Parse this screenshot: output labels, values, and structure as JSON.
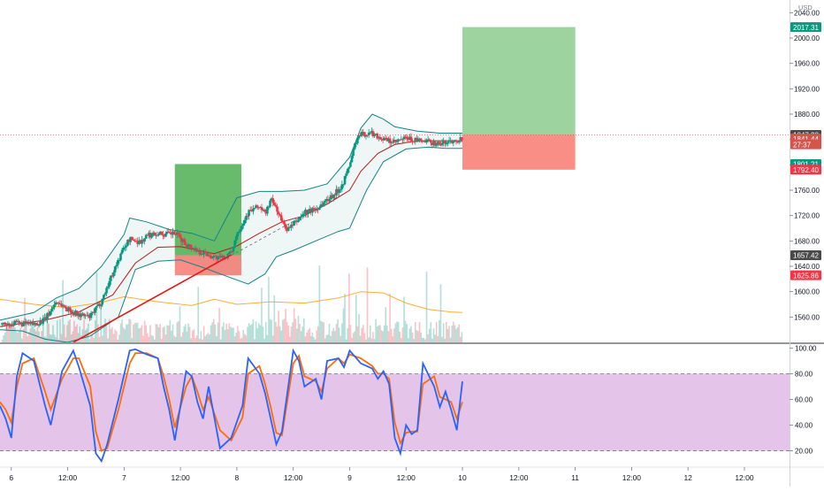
{
  "chart_data": {
    "type": "candlestick",
    "currency": "USD",
    "price_axis": {
      "range": [
        1520,
        2060
      ],
      "ticks": [
        1560,
        1600,
        1640,
        1680,
        1720,
        1760,
        1800,
        1840,
        1880,
        1920,
        1960,
        2000,
        2040
      ],
      "tick_labels": [
        "1560.00",
        "1600.00",
        "1640.00",
        "1680.00",
        "1720.00",
        "1760.00",
        "1800.00",
        "1840.00",
        "1880.00",
        "1920.00",
        "1960.00",
        "2000.00",
        "2040.00"
      ]
    },
    "time_axis": {
      "range": [
        5.9,
        12.9
      ],
      "ticks": [
        6,
        6.5,
        7,
        7.5,
        8,
        8.5,
        9,
        9.5,
        10,
        10.5,
        11,
        11.5,
        12,
        12.5
      ],
      "tick_labels": [
        "6",
        "12:00",
        "7",
        "12:00",
        "8",
        "12:00",
        "9",
        "12:00",
        "10",
        "12:00",
        "11",
        "12:00",
        "12",
        "12:00"
      ]
    },
    "close_path": [
      [
        5.9,
        1548
      ],
      [
        6.05,
        1550
      ],
      [
        6.2,
        1548
      ],
      [
        6.3,
        1556
      ],
      [
        6.4,
        1585
      ],
      [
        6.5,
        1572
      ],
      [
        6.6,
        1563
      ],
      [
        6.7,
        1560
      ],
      [
        6.8,
        1585
      ],
      [
        6.9,
        1630
      ],
      [
        7.0,
        1670
      ],
      [
        7.05,
        1683
      ],
      [
        7.15,
        1678
      ],
      [
        7.2,
        1688
      ],
      [
        7.3,
        1693
      ],
      [
        7.35,
        1690
      ],
      [
        7.45,
        1692
      ],
      [
        7.55,
        1675
      ],
      [
        7.65,
        1665
      ],
      [
        7.75,
        1658
      ],
      [
        7.85,
        1652
      ],
      [
        7.95,
        1660
      ],
      [
        8.0,
        1692
      ],
      [
        8.05,
        1708
      ],
      [
        8.1,
        1725
      ],
      [
        8.2,
        1735
      ],
      [
        8.25,
        1722
      ],
      [
        8.3,
        1745
      ],
      [
        8.35,
        1732
      ],
      [
        8.4,
        1710
      ],
      [
        8.45,
        1698
      ],
      [
        8.5,
        1705
      ],
      [
        8.6,
        1725
      ],
      [
        8.7,
        1730
      ],
      [
        8.8,
        1745
      ],
      [
        8.9,
        1760
      ],
      [
        8.95,
        1775
      ],
      [
        9.0,
        1800
      ],
      [
        9.05,
        1835
      ],
      [
        9.1,
        1848
      ],
      [
        9.2,
        1850
      ],
      [
        9.3,
        1840
      ],
      [
        9.4,
        1835
      ],
      [
        9.5,
        1842
      ],
      [
        9.6,
        1838
      ],
      [
        9.7,
        1836
      ],
      [
        9.8,
        1833
      ],
      [
        9.9,
        1838
      ],
      [
        10.0,
        1841.44
      ]
    ],
    "bollinger_upper": [
      [
        5.9,
        1555
      ],
      [
        6.2,
        1567
      ],
      [
        6.4,
        1590
      ],
      [
        6.6,
        1605
      ],
      [
        6.8,
        1640
      ],
      [
        7.0,
        1690
      ],
      [
        7.05,
        1716
      ],
      [
        7.2,
        1710
      ],
      [
        7.4,
        1698
      ],
      [
        7.6,
        1692
      ],
      [
        7.8,
        1680
      ],
      [
        8.0,
        1748
      ],
      [
        8.2,
        1758
      ],
      [
        8.4,
        1758
      ],
      [
        8.6,
        1760
      ],
      [
        8.8,
        1770
      ],
      [
        9.0,
        1812
      ],
      [
        9.1,
        1858
      ],
      [
        9.2,
        1880
      ],
      [
        9.3,
        1872
      ],
      [
        9.4,
        1860
      ],
      [
        9.6,
        1853
      ],
      [
        9.8,
        1850
      ],
      [
        10.0,
        1850
      ]
    ],
    "bollinger_lower": [
      [
        5.9,
        1540
      ],
      [
        6.1,
        1538
      ],
      [
        6.3,
        1525
      ],
      [
        6.5,
        1520
      ],
      [
        6.7,
        1530
      ],
      [
        6.95,
        1560
      ],
      [
        7.1,
        1635
      ],
      [
        7.3,
        1648
      ],
      [
        7.5,
        1650
      ],
      [
        7.7,
        1638
      ],
      [
        7.9,
        1625
      ],
      [
        8.1,
        1612
      ],
      [
        8.25,
        1628
      ],
      [
        8.35,
        1655
      ],
      [
        8.5,
        1665
      ],
      [
        8.7,
        1680
      ],
      [
        8.9,
        1695
      ],
      [
        9.0,
        1700
      ],
      [
        9.15,
        1760
      ],
      [
        9.3,
        1805
      ],
      [
        9.5,
        1825
      ],
      [
        9.7,
        1828
      ],
      [
        9.85,
        1826
      ],
      [
        10.0,
        1826
      ]
    ],
    "moving_average": [
      [
        5.9,
        1545
      ],
      [
        6.3,
        1555
      ],
      [
        6.6,
        1568
      ],
      [
        6.9,
        1595
      ],
      [
        7.1,
        1645
      ],
      [
        7.3,
        1670
      ],
      [
        7.5,
        1671
      ],
      [
        7.8,
        1660
      ],
      [
        8.0,
        1672
      ],
      [
        8.2,
        1692
      ],
      [
        8.4,
        1710
      ],
      [
        8.6,
        1720
      ],
      [
        8.8,
        1738
      ],
      [
        9.0,
        1760
      ],
      [
        9.1,
        1790
      ],
      [
        9.25,
        1818
      ],
      [
        9.4,
        1832
      ],
      [
        9.6,
        1838
      ],
      [
        9.8,
        1838
      ],
      [
        10.0,
        1838
      ]
    ],
    "volume_ma": [
      [
        5.9,
        1588
      ],
      [
        6.2,
        1580
      ],
      [
        6.5,
        1575
      ],
      [
        6.8,
        1583
      ],
      [
        7.0,
        1592
      ],
      [
        7.3,
        1584
      ],
      [
        7.6,
        1578
      ],
      [
        7.8,
        1588
      ],
      [
        8.0,
        1580
      ],
      [
        8.3,
        1584
      ],
      [
        8.6,
        1582
      ],
      [
        8.9,
        1590
      ],
      [
        9.1,
        1600
      ],
      [
        9.3,
        1598
      ],
      [
        9.5,
        1582
      ],
      [
        9.7,
        1572
      ],
      [
        9.9,
        1568
      ],
      [
        10.0,
        1567
      ]
    ],
    "trendline": {
      "from": [
        6.55,
        1520
      ],
      "to": [
        7.95,
        1658
      ]
    },
    "dashed_line": {
      "from": [
        7.95,
        1657
      ],
      "to": [
        8.9,
        1750
      ]
    },
    "current_price_line": 1847.28,
    "positions": [
      {
        "kind": "long",
        "time": [
          7.45,
          8.04
        ],
        "entry": 1657.42,
        "target": 1801.21,
        "stop": 1625.86
      },
      {
        "kind": "long",
        "time": [
          10.0,
          11.0
        ],
        "entry": 1847.28,
        "target": 2017.31,
        "stop": 1792.4
      }
    ],
    "price_labels": [
      {
        "text": "2017.31",
        "value": 2017.31,
        "color": "#089981"
      },
      {
        "text": "1847.28",
        "value": 1847.28,
        "color": "#4a4a4a"
      },
      {
        "text": "1841.44",
        "value": 1841.44,
        "color": "#d5554d"
      },
      {
        "text": "27:37",
        "value": 1832.4,
        "color": "#d5554d"
      },
      {
        "text": "1801.21",
        "value": 1801.21,
        "color": "#089981"
      },
      {
        "text": "1792.40",
        "value": 1792.4,
        "color": "#f23645"
      },
      {
        "text": "1657.42",
        "value": 1657.42,
        "color": "#4a4a4a"
      },
      {
        "text": "1625.86",
        "value": 1625.86,
        "color": "#f23645"
      }
    ],
    "oscillator": {
      "axis": {
        "range": [
          8,
          103
        ],
        "ticks": [
          20,
          40,
          60,
          80,
          100
        ],
        "tick_labels": [
          "20.00",
          "40.00",
          "60.00",
          "80.00",
          "100.00"
        ]
      },
      "band": [
        20,
        80
      ],
      "k_line": [
        [
          5.9,
          55
        ],
        [
          5.95,
          45
        ],
        [
          6.0,
          30
        ],
        [
          6.05,
          78
        ],
        [
          6.1,
          96
        ],
        [
          6.2,
          90
        ],
        [
          6.3,
          55
        ],
        [
          6.35,
          40
        ],
        [
          6.45,
          82
        ],
        [
          6.55,
          98
        ],
        [
          6.6,
          85
        ],
        [
          6.7,
          55
        ],
        [
          6.75,
          18
        ],
        [
          6.8,
          12
        ],
        [
          6.85,
          25
        ],
        [
          6.95,
          60
        ],
        [
          7.05,
          98
        ],
        [
          7.1,
          99
        ],
        [
          7.2,
          95
        ],
        [
          7.3,
          92
        ],
        [
          7.35,
          70
        ],
        [
          7.4,
          52
        ],
        [
          7.45,
          28
        ],
        [
          7.55,
          82
        ],
        [
          7.6,
          78
        ],
        [
          7.65,
          58
        ],
        [
          7.7,
          45
        ],
        [
          7.75,
          70
        ],
        [
          7.85,
          22
        ],
        [
          7.95,
          30
        ],
        [
          8.05,
          55
        ],
        [
          8.1,
          92
        ],
        [
          8.2,
          80
        ],
        [
          8.25,
          65
        ],
        [
          8.3,
          45
        ],
        [
          8.35,
          25
        ],
        [
          8.4,
          35
        ],
        [
          8.5,
          98
        ],
        [
          8.55,
          90
        ],
        [
          8.6,
          70
        ],
        [
          8.7,
          76
        ],
        [
          8.75,
          60
        ],
        [
          8.8,
          90
        ],
        [
          8.9,
          92
        ],
        [
          8.95,
          85
        ],
        [
          9.0,
          98
        ],
        [
          9.1,
          88
        ],
        [
          9.2,
          84
        ],
        [
          9.25,
          76
        ],
        [
          9.3,
          82
        ],
        [
          9.35,
          72
        ],
        [
          9.4,
          30
        ],
        [
          9.45,
          18
        ],
        [
          9.5,
          40
        ],
        [
          9.55,
          33
        ],
        [
          9.6,
          36
        ],
        [
          9.65,
          88
        ],
        [
          9.75,
          70
        ],
        [
          9.8,
          54
        ],
        [
          9.85,
          66
        ],
        [
          9.9,
          52
        ],
        [
          9.95,
          36
        ],
        [
          10.0,
          74
        ]
      ],
      "d_line": [
        [
          5.9,
          58
        ],
        [
          5.95,
          52
        ],
        [
          6.0,
          42
        ],
        [
          6.05,
          70
        ],
        [
          6.1,
          88
        ],
        [
          6.2,
          92
        ],
        [
          6.3,
          66
        ],
        [
          6.35,
          52
        ],
        [
          6.45,
          76
        ],
        [
          6.55,
          92
        ],
        [
          6.6,
          92
        ],
        [
          6.7,
          70
        ],
        [
          6.75,
          35
        ],
        [
          6.8,
          20
        ],
        [
          6.85,
          22
        ],
        [
          6.95,
          52
        ],
        [
          7.05,
          88
        ],
        [
          7.1,
          96
        ],
        [
          7.2,
          96
        ],
        [
          7.3,
          92
        ],
        [
          7.35,
          78
        ],
        [
          7.4,
          60
        ],
        [
          7.45,
          38
        ],
        [
          7.55,
          70
        ],
        [
          7.6,
          78
        ],
        [
          7.65,
          66
        ],
        [
          7.7,
          52
        ],
        [
          7.75,
          62
        ],
        [
          7.85,
          36
        ],
        [
          7.95,
          28
        ],
        [
          8.05,
          46
        ],
        [
          8.1,
          80
        ],
        [
          8.2,
          86
        ],
        [
          8.25,
          72
        ],
        [
          8.3,
          54
        ],
        [
          8.35,
          34
        ],
        [
          8.4,
          32
        ],
        [
          8.5,
          88
        ],
        [
          8.55,
          94
        ],
        [
          8.6,
          78
        ],
        [
          8.7,
          74
        ],
        [
          8.75,
          66
        ],
        [
          8.8,
          84
        ],
        [
          8.9,
          92
        ],
        [
          8.95,
          88
        ],
        [
          9.0,
          95
        ],
        [
          9.1,
          92
        ],
        [
          9.2,
          86
        ],
        [
          9.25,
          80
        ],
        [
          9.3,
          80
        ],
        [
          9.35,
          76
        ],
        [
          9.4,
          42
        ],
        [
          9.45,
          26
        ],
        [
          9.5,
          34
        ],
        [
          9.55,
          35
        ],
        [
          9.6,
          35
        ],
        [
          9.65,
          72
        ],
        [
          9.75,
          78
        ],
        [
          9.8,
          62
        ],
        [
          9.85,
          60
        ],
        [
          9.9,
          58
        ],
        [
          9.95,
          45
        ],
        [
          10.0,
          58
        ]
      ]
    }
  },
  "colors": {
    "up": "#089981",
    "down": "#f23645",
    "bollinger": "#138484",
    "ma": "#b71c1c",
    "volume_ma": "#ff9800",
    "profit": "#4caf50",
    "loss": "#f44336",
    "k": "#2962ff",
    "d": "#ff6d00",
    "osc_fill": "#e1bee7"
  }
}
